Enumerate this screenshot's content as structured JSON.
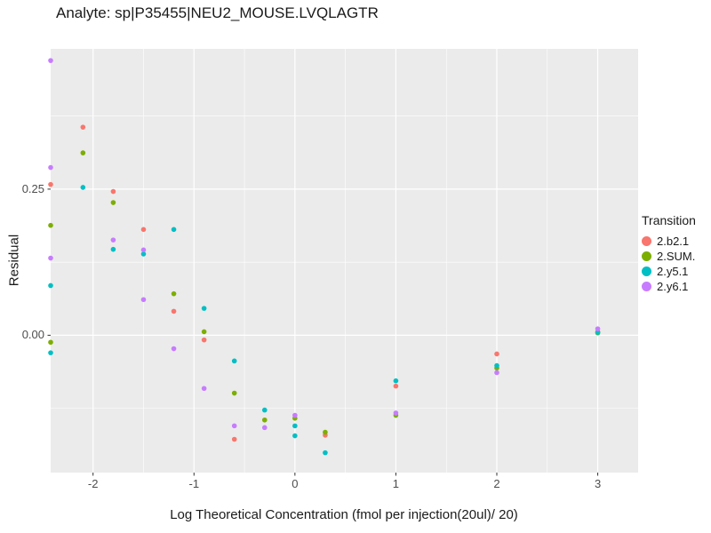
{
  "chart_data": {
    "type": "scatter",
    "title": "Analyte: sp|P35455|NEU2_MOUSE.LVQLAGTR",
    "xlabel": "Log Theoretical Concentration (fmol per injection(20ul)/ 20)",
    "ylabel": "Residual",
    "legend_title": "Transition",
    "legend_position": "right",
    "grid": true,
    "panel_color": "#EBEBEB",
    "grid_color": "#FFFFFF",
    "tick_color": "#333333",
    "tick_label_color": "#4D4D4D",
    "xlim": [
      -2.42,
      3.4
    ],
    "ylim": [
      -0.235,
      0.49
    ],
    "xticks": [
      -2,
      -1,
      0,
      1,
      2,
      3
    ],
    "yticks": [
      0,
      0.25
    ],
    "point_radius": 2.8,
    "series": [
      {
        "name": "2.b2.1",
        "color": "#F8766D",
        "points": [
          [
            -2.42,
            0.258
          ],
          [
            -2.1,
            0.356
          ],
          [
            -1.8,
            0.246
          ],
          [
            -1.5,
            0.181
          ],
          [
            -1.2,
            0.041
          ],
          [
            -0.9,
            -0.008
          ],
          [
            -0.6,
            -0.178
          ],
          [
            0.3,
            -0.171
          ],
          [
            1,
            -0.087
          ],
          [
            2,
            -0.032
          ],
          [
            3,
            0.006
          ]
        ]
      },
      {
        "name": "2.SUM.",
        "color": "#7CAE00",
        "points": [
          [
            -2.42,
            0.188
          ],
          [
            -2.42,
            -0.012
          ],
          [
            -2.1,
            0.312
          ],
          [
            -1.8,
            0.227
          ],
          [
            -1.2,
            0.071
          ],
          [
            -0.9,
            0.006
          ],
          [
            -0.6,
            -0.099
          ],
          [
            -0.3,
            -0.145
          ],
          [
            0,
            -0.142
          ],
          [
            0.3,
            -0.166
          ],
          [
            1,
            -0.137
          ],
          [
            2,
            -0.056
          ],
          [
            3,
            0.004
          ]
        ]
      },
      {
        "name": "2.y5.1",
        "color": "#00BFC4",
        "points": [
          [
            -2.42,
            0.085
          ],
          [
            -2.42,
            -0.03
          ],
          [
            -2.1,
            0.253
          ],
          [
            -1.8,
            0.147
          ],
          [
            -1.5,
            0.139
          ],
          [
            -1.2,
            0.181
          ],
          [
            -0.9,
            0.046
          ],
          [
            -0.6,
            -0.044
          ],
          [
            -0.3,
            -0.128
          ],
          [
            0,
            -0.155
          ],
          [
            0,
            -0.172
          ],
          [
            0.3,
            -0.201
          ],
          [
            1,
            -0.078
          ],
          [
            2,
            -0.052
          ],
          [
            3,
            0.005
          ]
        ]
      },
      {
        "name": "2.y6.1",
        "color": "#C77CFF",
        "points": [
          [
            -2.42,
            0.47
          ],
          [
            -2.42,
            0.287
          ],
          [
            -2.42,
            0.132
          ],
          [
            -1.8,
            0.163
          ],
          [
            -1.5,
            0.146
          ],
          [
            -1.5,
            0.061
          ],
          [
            -1.2,
            -0.023
          ],
          [
            -0.9,
            -0.091
          ],
          [
            -0.6,
            -0.155
          ],
          [
            -0.3,
            -0.158
          ],
          [
            0,
            -0.137
          ],
          [
            1,
            -0.133
          ],
          [
            2,
            -0.064
          ],
          [
            3,
            0.011
          ]
        ]
      }
    ]
  }
}
